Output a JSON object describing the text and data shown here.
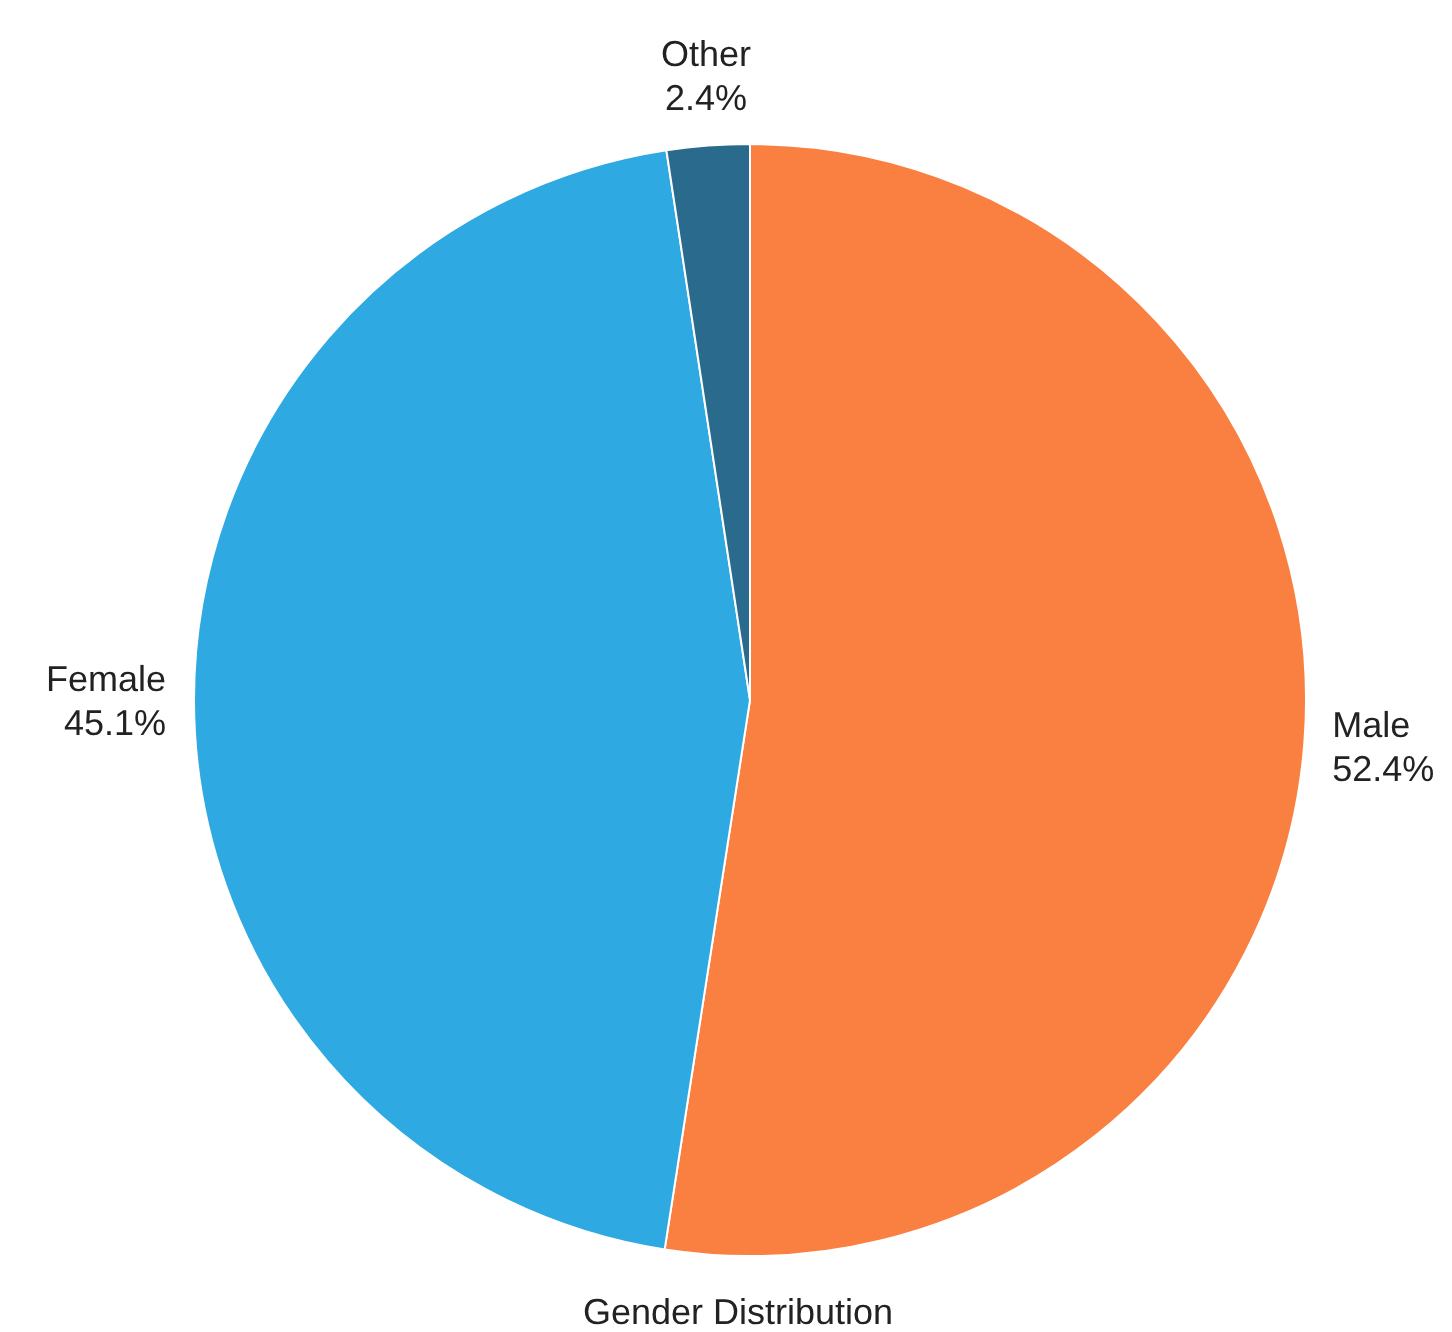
{
  "chart_data": {
    "type": "pie",
    "title": "Gender Distribution",
    "categories": [
      "Male",
      "Female",
      "Other"
    ],
    "values": [
      52.4,
      45.1,
      2.4
    ],
    "colors": [
      "#f98040",
      "#2ea9e1",
      "#2a6a8d"
    ],
    "value_labels": [
      "52.4%",
      "45.1%",
      "2.4%"
    ]
  }
}
